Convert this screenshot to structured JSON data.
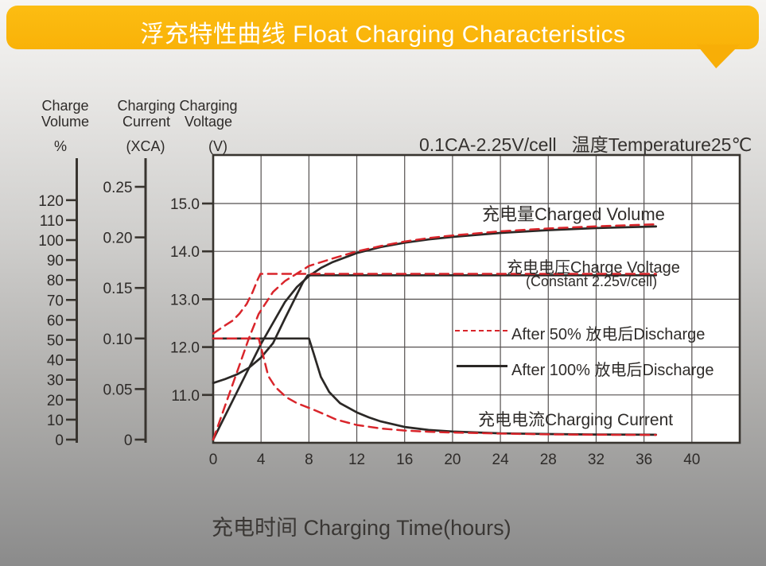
{
  "header": {
    "title": "浮充特性曲线 Float Charging Characteristics"
  },
  "condition": "0.1CA-2.25V/cell   温度Temperature25℃",
  "axis_headers": {
    "volume": {
      "line1": "Charge",
      "line2": "Volume",
      "unit": "%"
    },
    "current": {
      "line1": "Charging",
      "line2": "Current",
      "unit": "(XCA)"
    },
    "voltage": {
      "line1": "Charging",
      "line2": "Voltage",
      "unit": "(V)"
    }
  },
  "annotations": {
    "charged_volume": "充电量Charged Volume",
    "charge_voltage": "充电电压Charge Voltage",
    "charge_voltage_sub": "(Constant 2.25v/cell)",
    "charging_current": "充电电流Charging Current"
  },
  "legend": [
    {
      "label": "After 50% 放电后Discharge",
      "style": "dashed",
      "color_key": "red"
    },
    {
      "label": "After 100% 放电后Discharge",
      "style": "solid",
      "color_key": "black"
    }
  ],
  "xaxis_label": "充电时间 Charging Time(hours)",
  "colors": {
    "banner": "#f9b208",
    "red": "#d9252b",
    "black": "#2b2826",
    "grid": "#555150",
    "border": "#38342f",
    "tick_text": "#2e2b29"
  },
  "chart_data": {
    "type": "line",
    "title": "浮充特性曲线 Float Charging Characteristics",
    "xlabel": "充电时间 Charging Time(hours)",
    "x_unit": "hours",
    "x_range": [
      0,
      44
    ],
    "x_ticks": [
      0,
      4,
      8,
      12,
      16,
      20,
      24,
      28,
      32,
      36,
      40
    ],
    "grid": true,
    "axes": {
      "volume_percent": {
        "label": "Charge Volume (%)",
        "ticks": [
          120,
          110,
          100,
          90,
          80,
          70,
          60,
          50,
          40,
          30,
          20,
          10,
          0
        ]
      },
      "current_xca": {
        "label": "Charging Current (XCA)",
        "ticks": [
          "0.25",
          "0.20",
          "0.15",
          "0.10",
          "0.05",
          "0"
        ]
      },
      "voltage_v": {
        "label": "Charging Voltage (V)",
        "ticks": [
          "15.0",
          "14.0",
          "13.0",
          "12.0",
          "11.0"
        ],
        "range": [
          10,
          16
        ]
      }
    },
    "series": [
      {
        "name": "charged_volume_after_100_discharge",
        "axis": "volume_percent",
        "color_key": "black",
        "dash": false,
        "points": [
          [
            0,
            0
          ],
          [
            2,
            24
          ],
          [
            4,
            48
          ],
          [
            6,
            69
          ],
          [
            7,
            76.5
          ],
          [
            8,
            82
          ],
          [
            9,
            86
          ],
          [
            10,
            89
          ],
          [
            12,
            93.5
          ],
          [
            14,
            96.5
          ],
          [
            16,
            98.7
          ],
          [
            18,
            100.3
          ],
          [
            20,
            101.6
          ],
          [
            24,
            103.6
          ],
          [
            28,
            105
          ],
          [
            32,
            106
          ],
          [
            37,
            106.8
          ]
        ]
      },
      {
        "name": "charged_volume_after_50_discharge",
        "axis": "volume_percent",
        "color_key": "red",
        "dash": true,
        "points": [
          [
            0,
            0
          ],
          [
            1,
            17
          ],
          [
            2,
            34
          ],
          [
            3,
            51
          ],
          [
            3.8,
            63
          ],
          [
            5,
            74
          ],
          [
            6,
            79.5
          ],
          [
            8,
            87
          ],
          [
            10,
            90.8
          ],
          [
            12,
            94.3
          ],
          [
            14,
            97
          ],
          [
            16,
            99.3
          ],
          [
            18,
            101
          ],
          [
            20,
            102.3
          ],
          [
            24,
            104.4
          ],
          [
            28,
            105.8
          ],
          [
            32,
            106.9
          ],
          [
            37,
            107.9
          ]
        ]
      },
      {
        "name": "charge_voltage_after_100_discharge",
        "axis": "voltage_v",
        "color_key": "black",
        "dash": false,
        "points": [
          [
            0,
            11.25
          ],
          [
            1,
            11.33
          ],
          [
            2,
            11.43
          ],
          [
            3,
            11.57
          ],
          [
            4,
            11.78
          ],
          [
            5,
            12.08
          ],
          [
            6,
            12.6
          ],
          [
            7,
            13.1
          ],
          [
            7.5,
            13.35
          ],
          [
            7.9,
            13.5
          ],
          [
            37,
            13.5
          ]
        ]
      },
      {
        "name": "charge_voltage_after_50_discharge",
        "axis": "voltage_v",
        "color_key": "red",
        "dash": true,
        "points": [
          [
            0,
            12.28
          ],
          [
            0.8,
            12.42
          ],
          [
            1.6,
            12.55
          ],
          [
            2.2,
            12.7
          ],
          [
            2.8,
            12.9
          ],
          [
            3.3,
            13.15
          ],
          [
            3.7,
            13.4
          ],
          [
            3.95,
            13.53
          ],
          [
            37,
            13.53
          ]
        ]
      },
      {
        "name": "charging_current_after_100_discharge",
        "axis": "current_xca",
        "color_key": "black",
        "dash": false,
        "points": [
          [
            0,
            0.1
          ],
          [
            8,
            0.1
          ],
          [
            8.4,
            0.085
          ],
          [
            9,
            0.062
          ],
          [
            9.7,
            0.047
          ],
          [
            10.6,
            0.036
          ],
          [
            12,
            0.027
          ],
          [
            13,
            0.022
          ],
          [
            14,
            0.018
          ],
          [
            16,
            0.0125
          ],
          [
            18,
            0.0095
          ],
          [
            20,
            0.008
          ],
          [
            24,
            0.0062
          ],
          [
            28,
            0.0055
          ],
          [
            32,
            0.005
          ],
          [
            37,
            0.0048
          ]
        ]
      },
      {
        "name": "charging_current_after_50_discharge",
        "axis": "current_xca",
        "color_key": "red",
        "dash": true,
        "points": [
          [
            0,
            0.1
          ],
          [
            3.8,
            0.1
          ],
          [
            4.2,
            0.082
          ],
          [
            4.6,
            0.063
          ],
          [
            5.2,
            0.052
          ],
          [
            6.1,
            0.042
          ],
          [
            7,
            0.036
          ],
          [
            8.3,
            0.03
          ],
          [
            9.5,
            0.024
          ],
          [
            10.3,
            0.0197
          ],
          [
            12,
            0.0145
          ],
          [
            14,
            0.011
          ],
          [
            16,
            0.009
          ],
          [
            18,
            0.0078
          ],
          [
            20,
            0.007
          ],
          [
            24,
            0.006
          ],
          [
            28,
            0.0052
          ],
          [
            32,
            0.0048
          ],
          [
            37,
            0.0046
          ]
        ]
      }
    ],
    "curve_labels": {
      "charged_volume": "充电量Charged Volume",
      "charge_voltage": "充电电压Charge Voltage (Constant 2.25v/cell)",
      "charging_current": "充电电流Charging Current"
    },
    "condition": "0.1CA-2.25V/cell  温度Temperature25℃",
    "legend_position": "inside-right"
  }
}
